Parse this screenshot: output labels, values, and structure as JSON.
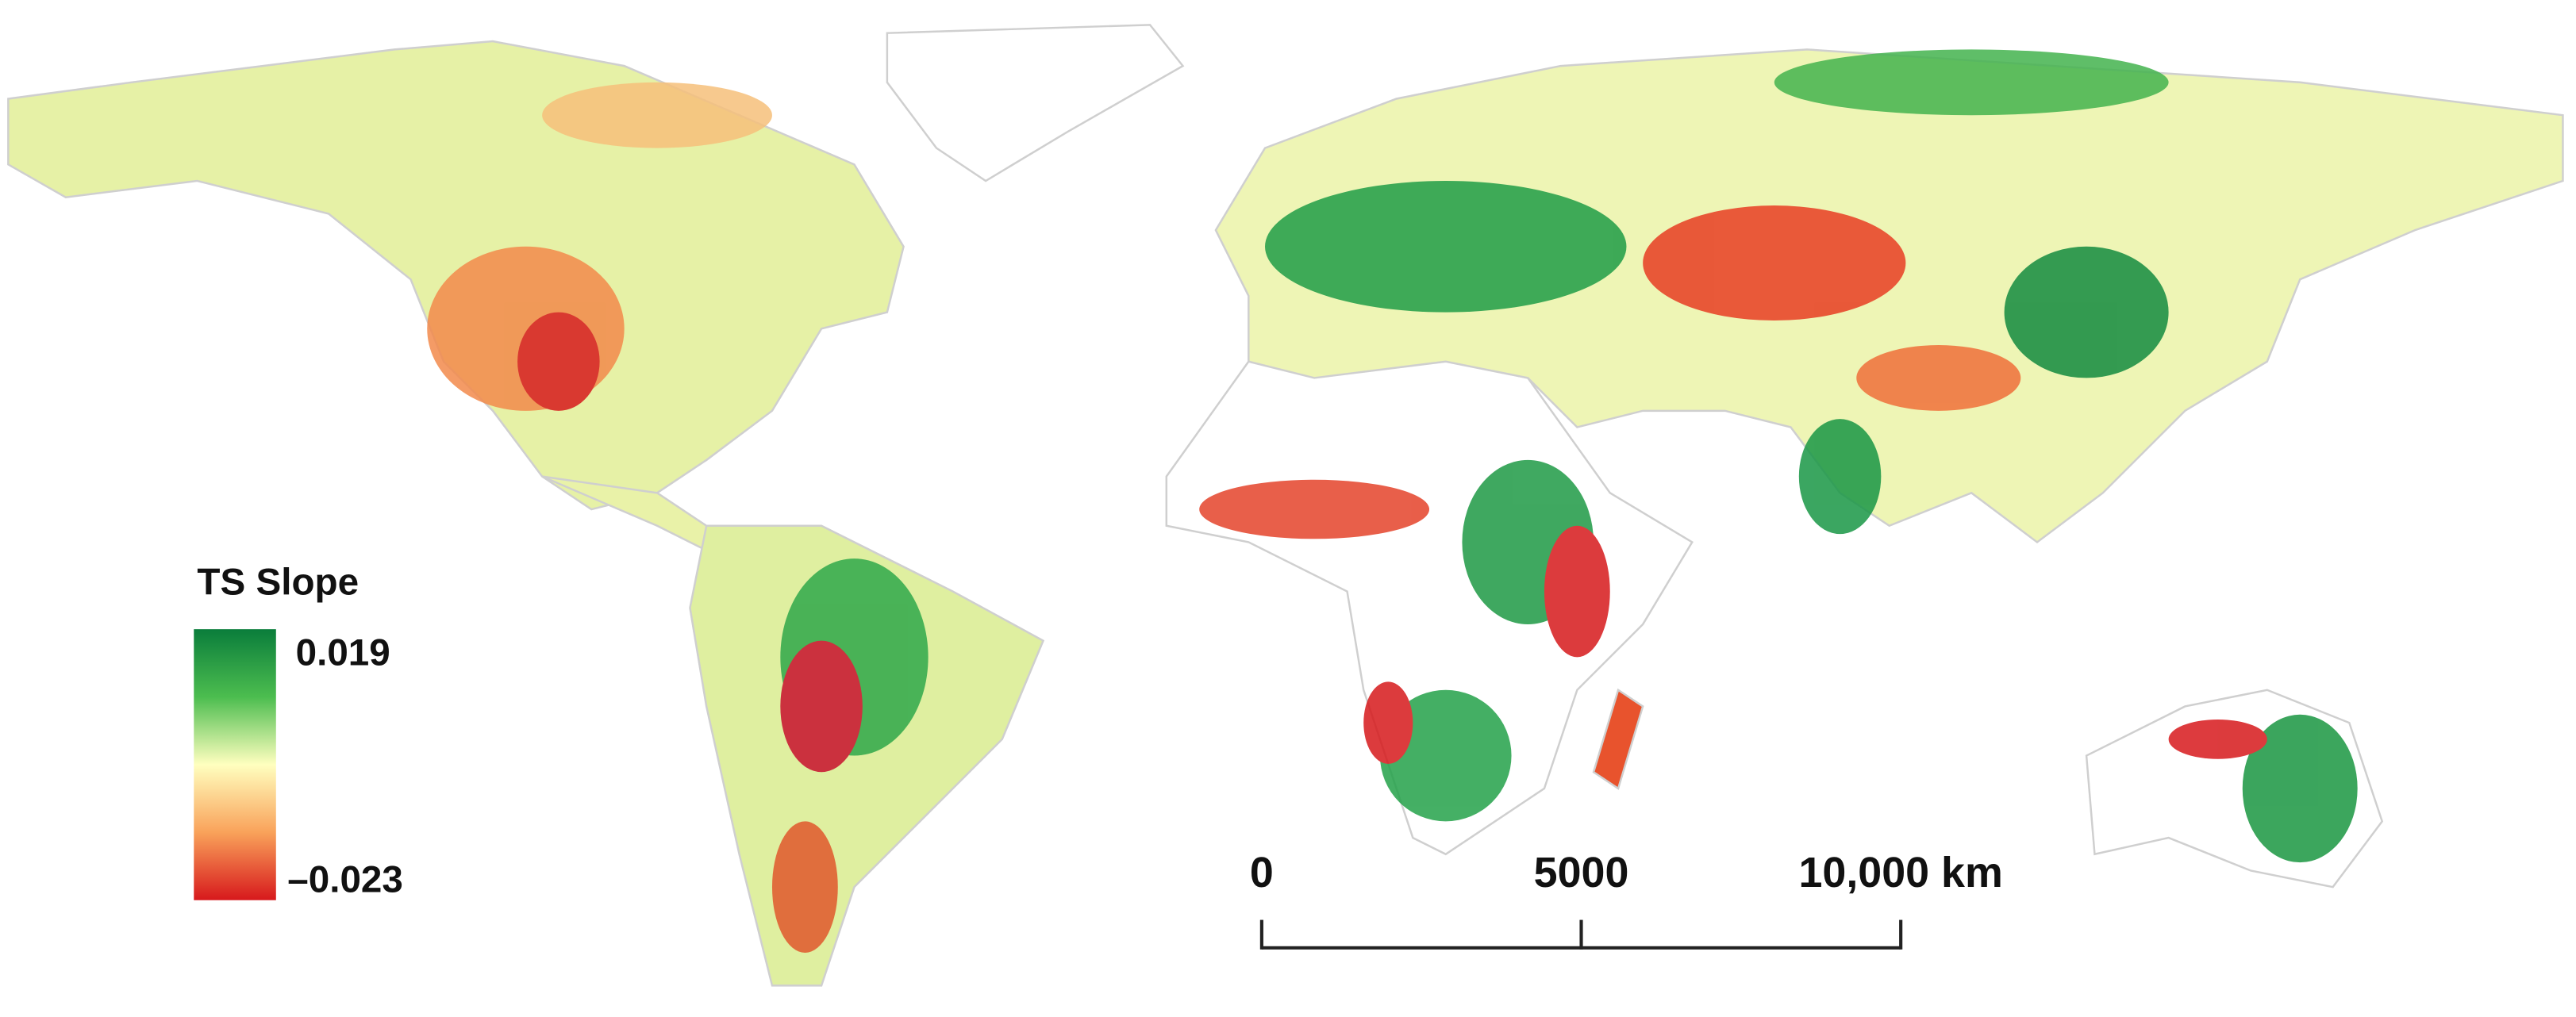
{
  "legend": {
    "title": "TS Slope",
    "max_label": "0.019",
    "min_label": "–0.023"
  },
  "scale_bar": {
    "labels": [
      "0",
      "5000",
      "10,000 km"
    ]
  }
}
